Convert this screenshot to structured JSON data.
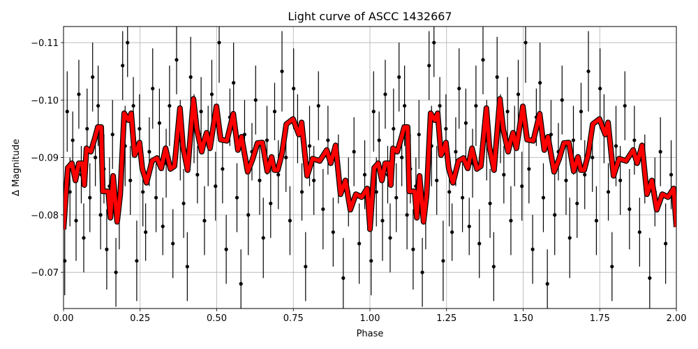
{
  "chart_data": {
    "type": "scatter",
    "title": "Light curve of ASCC 1432667",
    "xlabel": "Phase",
    "ylabel": "Δ Magnitude",
    "xlim": [
      0,
      2
    ],
    "ylim": [
      -0.0637,
      -0.1128
    ],
    "y_inverted": true,
    "grid": true,
    "xticks": [
      0,
      0.25,
      0.5,
      0.75,
      1.0,
      1.25,
      1.5,
      1.75,
      2.0
    ],
    "xtick_labels": [
      "0.00",
      "0.25",
      "0.50",
      "0.75",
      "1.00",
      "1.25",
      "1.50",
      "1.75",
      "2.00"
    ],
    "yticks": [
      -0.07,
      -0.08,
      -0.09,
      -0.1,
      -0.11
    ],
    "ytick_labels": [
      "−0.07",
      "−0.08",
      "−0.09",
      "−0.10",
      "−0.11"
    ],
    "phase_shown_twice": true,
    "colors": {
      "points": "#000000",
      "model": "#ff0000",
      "grid": "#b0b0b0"
    },
    "observations": [
      [
        0.004,
        -0.072,
        0.006
      ],
      [
        0.012,
        -0.098,
        0.007
      ],
      [
        0.021,
        -0.084,
        0.006
      ],
      [
        0.03,
        -0.093,
        0.005
      ],
      [
        0.041,
        -0.079,
        0.007
      ],
      [
        0.05,
        -0.101,
        0.006
      ],
      [
        0.058,
        -0.087,
        0.005
      ],
      [
        0.066,
        -0.076,
        0.006
      ],
      [
        0.077,
        -0.095,
        0.007
      ],
      [
        0.086,
        -0.083,
        0.006
      ],
      [
        0.095,
        -0.104,
        0.006
      ],
      [
        0.104,
        -0.09,
        0.005
      ],
      [
        0.113,
        -0.099,
        0.007
      ],
      [
        0.121,
        -0.08,
        0.006
      ],
      [
        0.132,
        -0.088,
        0.006
      ],
      [
        0.141,
        -0.074,
        0.007
      ],
      [
        0.15,
        -0.085,
        0.005
      ],
      [
        0.16,
        -0.094,
        0.006
      ],
      [
        0.171,
        -0.07,
        0.006
      ],
      [
        0.182,
        -0.081,
        0.007
      ],
      [
        0.193,
        -0.106,
        0.006
      ],
      [
        0.201,
        -0.092,
        0.007
      ],
      [
        0.209,
        -0.11,
        0.006
      ],
      [
        0.218,
        -0.086,
        0.006
      ],
      [
        0.228,
        -0.099,
        0.005
      ],
      [
        0.239,
        -0.072,
        0.007
      ],
      [
        0.248,
        -0.095,
        0.006
      ],
      [
        0.259,
        -0.084,
        0.006
      ],
      [
        0.268,
        -0.077,
        0.005
      ],
      [
        0.28,
        -0.091,
        0.006
      ],
      [
        0.291,
        -0.102,
        0.007
      ],
      [
        0.302,
        -0.083,
        0.006
      ],
      [
        0.313,
        -0.096,
        0.006
      ],
      [
        0.324,
        -0.078,
        0.005
      ],
      [
        0.335,
        -0.089,
        0.006
      ],
      [
        0.346,
        -0.099,
        0.007
      ],
      [
        0.357,
        -0.075,
        0.006
      ],
      [
        0.369,
        -0.107,
        0.006
      ],
      [
        0.381,
        -0.093,
        0.007
      ],
      [
        0.392,
        -0.082,
        0.006
      ],
      [
        0.404,
        -0.071,
        0.006
      ],
      [
        0.415,
        -0.104,
        0.007
      ],
      [
        0.426,
        -0.095,
        0.006
      ],
      [
        0.437,
        -0.087,
        0.005
      ],
      [
        0.449,
        -0.098,
        0.006
      ],
      [
        0.46,
        -0.079,
        0.006
      ],
      [
        0.472,
        -0.092,
        0.007
      ],
      [
        0.484,
        -0.101,
        0.006
      ],
      [
        0.496,
        -0.085,
        0.006
      ],
      [
        0.508,
        -0.11,
        0.007
      ],
      [
        0.519,
        -0.088,
        0.006
      ],
      [
        0.531,
        -0.074,
        0.006
      ],
      [
        0.543,
        -0.097,
        0.005
      ],
      [
        0.555,
        -0.103,
        0.007
      ],
      [
        0.566,
        -0.083,
        0.006
      ],
      [
        0.579,
        -0.068,
        0.006
      ],
      [
        0.591,
        -0.094,
        0.006
      ],
      [
        0.603,
        -0.08,
        0.007
      ],
      [
        0.615,
        -0.091,
        0.005
      ],
      [
        0.627,
        -0.1,
        0.006
      ],
      [
        0.64,
        -0.086,
        0.006
      ],
      [
        0.652,
        -0.076,
        0.007
      ],
      [
        0.664,
        -0.093,
        0.006
      ],
      [
        0.676,
        -0.082,
        0.006
      ],
      [
        0.689,
        -0.098,
        0.005
      ],
      [
        0.701,
        -0.087,
        0.006
      ],
      [
        0.713,
        -0.105,
        0.007
      ],
      [
        0.726,
        -0.09,
        0.006
      ],
      [
        0.739,
        -0.079,
        0.006
      ],
      [
        0.751,
        -0.102,
        0.007
      ],
      [
        0.764,
        -0.095,
        0.006
      ],
      [
        0.778,
        -0.084,
        0.005
      ],
      [
        0.79,
        -0.071,
        0.006
      ],
      [
        0.803,
        -0.092,
        0.007
      ],
      [
        0.817,
        -0.086,
        0.006
      ],
      [
        0.832,
        -0.099,
        0.006
      ],
      [
        0.847,
        -0.081,
        0.007
      ],
      [
        0.863,
        -0.093,
        0.006
      ],
      [
        0.88,
        -0.077,
        0.006
      ],
      [
        0.897,
        -0.088,
        0.006
      ],
      [
        0.913,
        -0.069,
        0.007
      ],
      [
        0.93,
        -0.084,
        0.006
      ],
      [
        0.948,
        -0.091,
        0.006
      ],
      [
        0.965,
        -0.075,
        0.007
      ],
      [
        0.983,
        -0.087,
        0.006
      ]
    ],
    "model_curve": [
      [
        0.0,
        -0.0775
      ],
      [
        0.014,
        -0.0882
      ],
      [
        0.027,
        -0.089
      ],
      [
        0.039,
        -0.086
      ],
      [
        0.05,
        -0.089
      ],
      [
        0.061,
        -0.089
      ],
      [
        0.068,
        -0.0852
      ],
      [
        0.075,
        -0.0916
      ],
      [
        0.089,
        -0.091
      ],
      [
        0.103,
        -0.0935
      ],
      [
        0.112,
        -0.0953
      ],
      [
        0.123,
        -0.0953
      ],
      [
        0.128,
        -0.0841
      ],
      [
        0.146,
        -0.0841
      ],
      [
        0.153,
        -0.0795
      ],
      [
        0.162,
        -0.0868
      ],
      [
        0.175,
        -0.0788
      ],
      [
        0.185,
        -0.0835
      ],
      [
        0.198,
        -0.0977
      ],
      [
        0.212,
        -0.0965
      ],
      [
        0.221,
        -0.0977
      ],
      [
        0.232,
        -0.0904
      ],
      [
        0.239,
        -0.0912
      ],
      [
        0.248,
        -0.0926
      ],
      [
        0.257,
        -0.0881
      ],
      [
        0.271,
        -0.0856
      ],
      [
        0.289,
        -0.0894
      ],
      [
        0.305,
        -0.0899
      ],
      [
        0.319,
        -0.0881
      ],
      [
        0.333,
        -0.0916
      ],
      [
        0.349,
        -0.088
      ],
      [
        0.362,
        -0.0885
      ],
      [
        0.38,
        -0.0986
      ],
      [
        0.39,
        -0.0918
      ],
      [
        0.405,
        -0.0878
      ],
      [
        0.424,
        -0.1002
      ],
      [
        0.435,
        -0.0949
      ],
      [
        0.451,
        -0.091
      ],
      [
        0.46,
        -0.0931
      ],
      [
        0.467,
        -0.0943
      ],
      [
        0.478,
        -0.0916
      ],
      [
        0.499,
        -0.0989
      ],
      [
        0.513,
        -0.0931
      ],
      [
        0.533,
        -0.0929
      ],
      [
        0.554,
        -0.0976
      ],
      [
        0.569,
        -0.0913
      ],
      [
        0.581,
        -0.0936
      ],
      [
        0.601,
        -0.0875
      ],
      [
        0.617,
        -0.0897
      ],
      [
        0.633,
        -0.0925
      ],
      [
        0.649,
        -0.0926
      ],
      [
        0.665,
        -0.0876
      ],
      [
        0.679,
        -0.0901
      ],
      [
        0.688,
        -0.0878
      ],
      [
        0.699,
        -0.0878
      ],
      [
        0.713,
        -0.0907
      ],
      [
        0.727,
        -0.0958
      ],
      [
        0.749,
        -0.0967
      ],
      [
        0.768,
        -0.094
      ],
      [
        0.777,
        -0.0961
      ],
      [
        0.795,
        -0.0868
      ],
      [
        0.813,
        -0.0898
      ],
      [
        0.836,
        -0.0894
      ],
      [
        0.859,
        -0.0913
      ],
      [
        0.872,
        -0.089
      ],
      [
        0.888,
        -0.0921
      ],
      [
        0.904,
        -0.0836
      ],
      [
        0.92,
        -0.086
      ],
      [
        0.936,
        -0.0809
      ],
      [
        0.954,
        -0.0836
      ],
      [
        0.973,
        -0.0831
      ],
      [
        0.991,
        -0.0846
      ],
      [
        1.0,
        -0.0779
      ]
    ]
  }
}
